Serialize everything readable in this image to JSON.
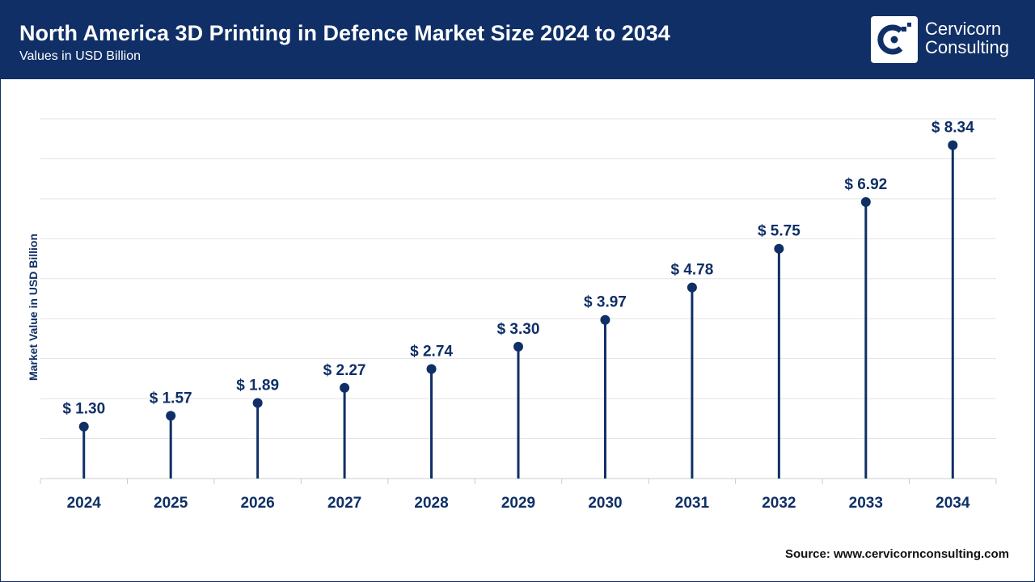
{
  "header": {
    "title": "North America 3D Printing in Defence Market Size 2024 to 2034",
    "subtitle": "Values in USD Billion"
  },
  "brand": {
    "line1": "Cervicorn",
    "line2": "Consulting",
    "logo_icon": "cervicorn-logo-icon"
  },
  "colors": {
    "primary": "#0f2f66",
    "grid": "#e3e3e3",
    "axis": "#cccccc",
    "text": "#111111"
  },
  "chart_data": {
    "type": "lollipop",
    "title": "North America 3D Printing in Defence Market Size 2024 to 2034",
    "subtitle": "Values in USD Billion",
    "xlabel": "",
    "ylabel": "Market Value in USD Billion",
    "categories": [
      "2024",
      "2025",
      "2026",
      "2027",
      "2028",
      "2029",
      "2030",
      "2031",
      "2032",
      "2033",
      "2034"
    ],
    "values": [
      1.3,
      1.57,
      1.89,
      2.27,
      2.74,
      3.3,
      3.97,
      4.78,
      5.75,
      6.92,
      8.34
    ],
    "value_labels": [
      "$ 1.30",
      "$ 1.57",
      "$ 1.89",
      "$ 2.27",
      "$ 2.74",
      "$ 3.30",
      "$ 3.97",
      "$ 4.78",
      "$ 5.75",
      "$ 6.92",
      "$ 8.34"
    ],
    "ylim": [
      0,
      9
    ],
    "grid": true,
    "y_tick_labels_shown": false
  },
  "source": "Source: www.cervicornconsulting.com"
}
